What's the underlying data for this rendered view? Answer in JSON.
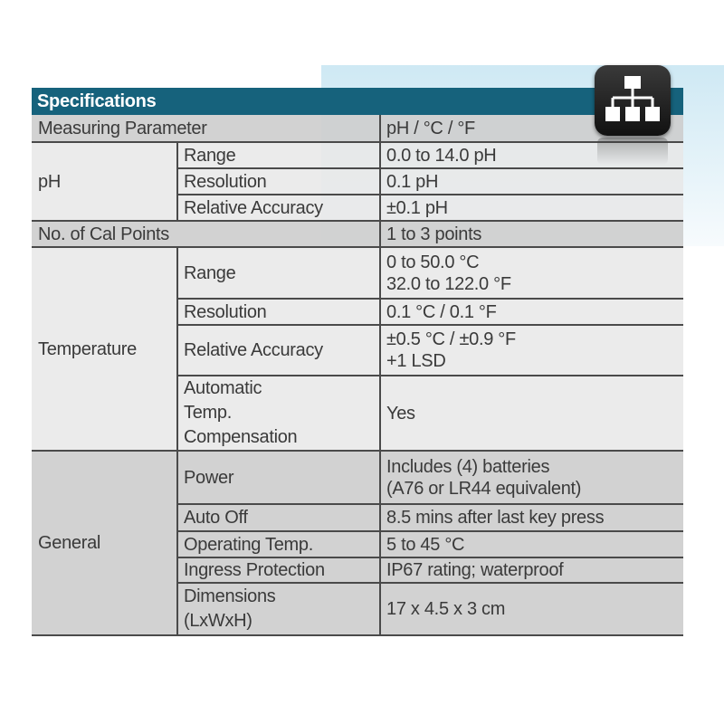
{
  "title": "Specifications",
  "header_color": "#16627c",
  "icon": "sitemap-hierarchy-icon",
  "rows": {
    "measuring": {
      "label": "Measuring Parameter",
      "value": "pH / °C / °F"
    },
    "ph": {
      "group": "pH",
      "range": {
        "label": "Range",
        "value": "0.0 to 14.0 pH"
      },
      "resolution": {
        "label": "Resolution",
        "value": "0.1 pH"
      },
      "accuracy": {
        "label": "Relative Accuracy",
        "value": "±0.1 pH"
      }
    },
    "cal": {
      "label": "No. of Cal Points",
      "value": "1 to 3 points"
    },
    "temperature": {
      "group": "Temperature",
      "range": {
        "label": "Range",
        "value_1": "0 to 50.0 °C",
        "value_2": "32.0 to 122.0 °F"
      },
      "resolution": {
        "label": "Resolution",
        "value": "0.1 °C / 0.1 °F"
      },
      "accuracy": {
        "label": "Relative Accuracy",
        "value_1": "±0.5 °C / ±0.9 °F",
        "value_2": "+1 LSD"
      },
      "atc": {
        "label_1": "Automatic",
        "label_2": "Temp.",
        "label_3": "Compensation",
        "value": "Yes"
      }
    },
    "general": {
      "group": "General",
      "power": {
        "label": "Power",
        "value_1": "Includes (4) batteries",
        "value_2": "(A76 or LR44 equivalent)"
      },
      "auto_off": {
        "label": "Auto Off",
        "value": "8.5 mins after last key press"
      },
      "op_temp": {
        "label": "Operating Temp.",
        "value": "5 to 45 °C"
      },
      "ingress": {
        "label": "Ingress Protection",
        "value": "IP67 rating; waterproof"
      },
      "dimensions": {
        "label_1": "Dimensions",
        "label_2": "(LxWxH)",
        "value": "17 x 4.5 x 3 cm"
      }
    }
  }
}
